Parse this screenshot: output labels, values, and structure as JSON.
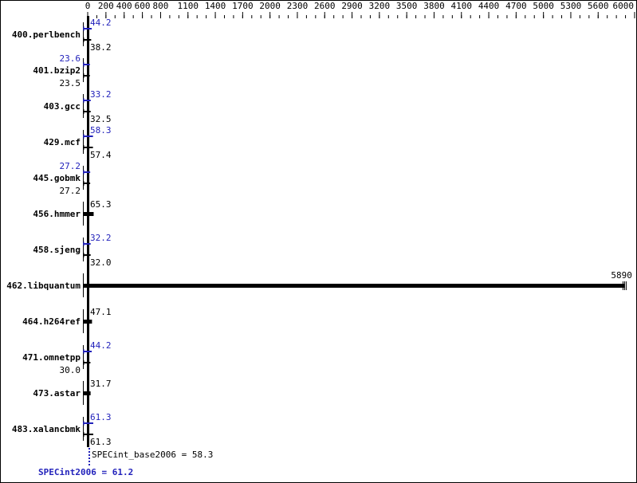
{
  "chart_data": {
    "type": "bar",
    "orientation": "horizontal",
    "xlim": [
      0,
      6000
    ],
    "tick_labels": [
      "0",
      "200",
      "400",
      "600",
      "800",
      "1100",
      "1400",
      "1700",
      "2000",
      "2300",
      "2600",
      "2900",
      "3200",
      "3500",
      "3800",
      "4100",
      "4400",
      "4700",
      "5000",
      "5300",
      "5600",
      "6000"
    ],
    "categories": [
      "400.perlbench",
      "401.bzip2",
      "403.gcc",
      "429.mcf",
      "445.gobmk",
      "456.hmmer",
      "458.sjeng",
      "462.libquantum",
      "464.h264ref",
      "471.omnetpp",
      "473.astar",
      "483.xalancbmk"
    ],
    "series": [
      {
        "name": "SPECint2006",
        "color": "#2222bb",
        "values": [
          44.2,
          23.6,
          33.2,
          58.3,
          27.2,
          null,
          32.2,
          null,
          null,
          44.2,
          null,
          61.3
        ]
      },
      {
        "name": "SPECint_base2006",
        "color": "#000000",
        "values": [
          38.2,
          23.5,
          32.5,
          57.4,
          27.2,
          65.3,
          32.0,
          5890,
          47.1,
          30.0,
          31.7,
          61.3
        ]
      }
    ],
    "value_labels": {
      "peak": [
        "44.2",
        "23.6",
        "33.2",
        "58.3",
        "27.2",
        "",
        "32.2",
        "",
        "",
        "44.2",
        "",
        "61.3"
      ],
      "base": [
        "38.2",
        "23.5",
        "32.5",
        "57.4",
        "27.2",
        "65.3",
        "32.0",
        "5890",
        "47.1",
        "30.0",
        "31.7",
        "61.3"
      ]
    },
    "summary": {
      "base_label": "SPECint_base2006 = 58.3",
      "peak_label": "SPECint2006 = 61.2",
      "base_value": 58.3,
      "peak_value": 61.2
    },
    "grid": false
  }
}
